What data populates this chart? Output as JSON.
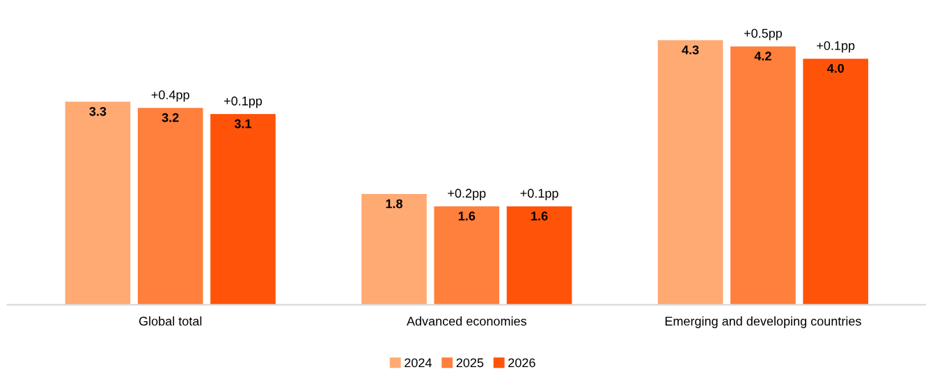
{
  "chart_data": {
    "type": "bar",
    "categories": [
      "Global total",
      "Advanced economies",
      "Emerging and developing countries"
    ],
    "series": [
      {
        "name": "2024",
        "color": "#ffaa73",
        "values": [
          3.3,
          1.8,
          4.3
        ],
        "value_labels": [
          "3.3",
          "1.8",
          "4.3"
        ]
      },
      {
        "name": "2025",
        "color": "#ff7f3c",
        "values": [
          3.2,
          1.6,
          4.2
        ],
        "value_labels": [
          "3.2",
          "1.6",
          "4.2"
        ]
      },
      {
        "name": "2026",
        "color": "#ff530a",
        "values": [
          3.1,
          1.6,
          4.0
        ],
        "value_labels": [
          "3.1",
          "1.6",
          "4.0"
        ]
      }
    ],
    "legend": "bottom",
    "annotations": [
      "+0.4pp",
      "+0.1pp",
      "+0.2pp",
      "+0.1pp",
      "+0.5pp",
      "+0.1pp"
    ]
  }
}
